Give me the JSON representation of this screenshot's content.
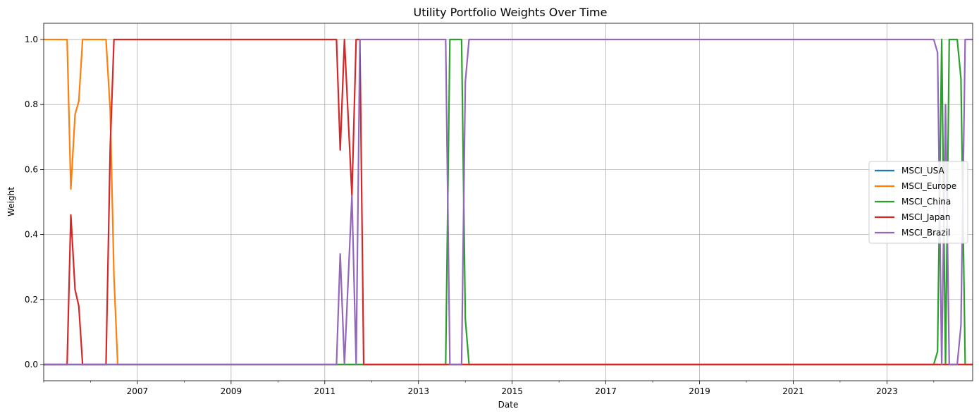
{
  "chart_data": {
    "type": "line",
    "title": "Utility Portfolio Weights Over Time",
    "xlabel": "Date",
    "ylabel": "Weight",
    "xlim": [
      2005.0,
      2024.83
    ],
    "ylim": [
      -0.05,
      1.05
    ],
    "x_ticks": [
      2007,
      2009,
      2011,
      2013,
      2015,
      2017,
      2019,
      2021,
      2023
    ],
    "y_ticks": [
      "0.0",
      "0.2",
      "0.4",
      "0.6",
      "0.8",
      "1.0"
    ],
    "grid": true,
    "legend_position": "center-right",
    "series": [
      {
        "name": "MSCI_USA",
        "color": "#1f77b4",
        "points": [
          [
            2005.0,
            0.0
          ],
          [
            2024.83,
            0.0
          ]
        ]
      },
      {
        "name": "MSCI_Europe",
        "color": "#ff7f0e",
        "points": [
          [
            2005.0,
            1.0
          ],
          [
            2005.5,
            1.0
          ],
          [
            2005.58,
            0.54
          ],
          [
            2005.67,
            0.77
          ],
          [
            2005.75,
            0.81
          ],
          [
            2005.83,
            1.0
          ],
          [
            2006.33,
            1.0
          ],
          [
            2006.42,
            0.78
          ],
          [
            2006.5,
            0.27
          ],
          [
            2006.58,
            0.0
          ],
          [
            2024.83,
            0.0
          ]
        ]
      },
      {
        "name": "MSCI_China",
        "color": "#2ca02c",
        "points": [
          [
            2005.0,
            0.0
          ],
          [
            2013.58,
            0.0
          ],
          [
            2013.67,
            1.0
          ],
          [
            2013.92,
            1.0
          ],
          [
            2014.0,
            0.14
          ],
          [
            2014.08,
            0.0
          ],
          [
            2024.0,
            0.0
          ],
          [
            2024.08,
            0.04
          ],
          [
            2024.17,
            1.0
          ],
          [
            2024.25,
            0.0
          ],
          [
            2024.33,
            1.0
          ],
          [
            2024.5,
            1.0
          ],
          [
            2024.58,
            0.88
          ],
          [
            2024.67,
            0.0
          ],
          [
            2024.83,
            0.0
          ]
        ]
      },
      {
        "name": "MSCI_Japan",
        "color": "#d62728",
        "points": [
          [
            2005.0,
            0.0
          ],
          [
            2005.5,
            0.0
          ],
          [
            2005.58,
            0.46
          ],
          [
            2005.67,
            0.23
          ],
          [
            2005.75,
            0.18
          ],
          [
            2005.83,
            0.0
          ],
          [
            2006.33,
            0.0
          ],
          [
            2006.42,
            0.67
          ],
          [
            2006.5,
            1.0
          ],
          [
            2011.25,
            1.0
          ],
          [
            2011.33,
            0.66
          ],
          [
            2011.42,
            1.0
          ],
          [
            2011.58,
            0.52
          ],
          [
            2011.67,
            1.0
          ],
          [
            2011.75,
            1.0
          ],
          [
            2011.83,
            0.0
          ],
          [
            2024.83,
            0.0
          ]
        ]
      },
      {
        "name": "MSCI_Brazil",
        "color": "#9467bd",
        "points": [
          [
            2005.0,
            0.0
          ],
          [
            2011.25,
            0.0
          ],
          [
            2011.33,
            0.34
          ],
          [
            2011.42,
            0.0
          ],
          [
            2011.58,
            0.52
          ],
          [
            2011.67,
            0.0
          ],
          [
            2011.75,
            1.0
          ],
          [
            2013.58,
            1.0
          ],
          [
            2013.67,
            0.0
          ],
          [
            2013.92,
            0.0
          ],
          [
            2014.0,
            0.87
          ],
          [
            2014.08,
            1.0
          ],
          [
            2024.0,
            1.0
          ],
          [
            2024.08,
            0.96
          ],
          [
            2024.17,
            0.0
          ],
          [
            2024.25,
            0.8
          ],
          [
            2024.33,
            0.0
          ],
          [
            2024.5,
            0.0
          ],
          [
            2024.58,
            0.12
          ],
          [
            2024.67,
            1.0
          ],
          [
            2024.83,
            1.0
          ]
        ]
      }
    ]
  }
}
